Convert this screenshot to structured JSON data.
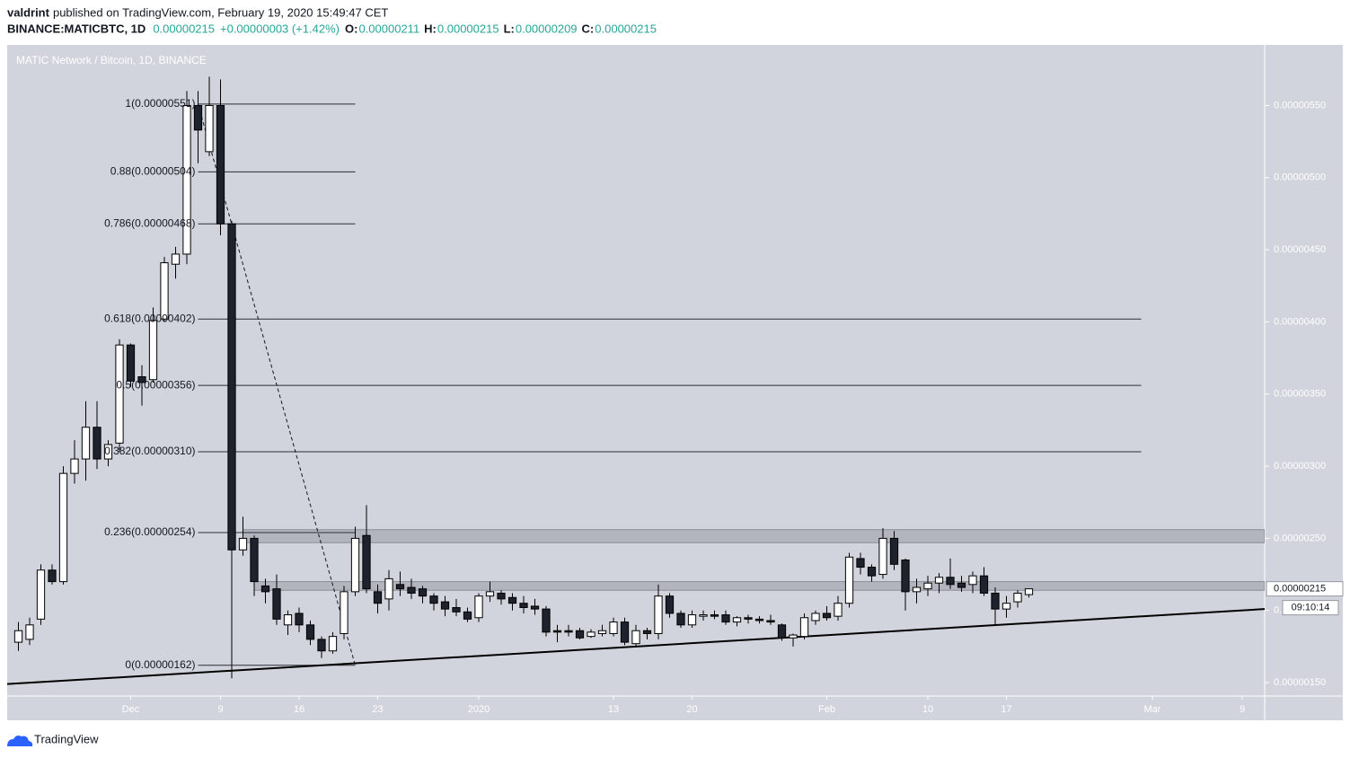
{
  "header": {
    "user": "valdrint",
    "published": "published on TradingView.com, February 19, 2020 15:49:47 CET",
    "symbol": "BINANCE:MATICBTC, 1D",
    "last": "0.00000215",
    "change": "+0.00000003 (+1.42%)",
    "o_label": "O:",
    "o": "0.00000211",
    "h_label": "H:",
    "h": "0.00000215",
    "l_label": "L:",
    "l": "0.00000209",
    "c_label": "C:",
    "c": "0.00000215"
  },
  "footer": {
    "brand": "TradingView"
  },
  "chart_data": {
    "type": "candlestick",
    "title": "MATIC Network / Bitcoin, 1D, BINANCE",
    "x": [
      "2019-11-21",
      "2019-11-22",
      "2019-11-23",
      "2019-11-24",
      "2019-11-25",
      "2019-11-26",
      "2019-11-27",
      "2019-11-28",
      "2019-11-29",
      "2019-11-30",
      "2019-12-01",
      "2019-12-02",
      "2019-12-03",
      "2019-12-04",
      "2019-12-05",
      "2019-12-06",
      "2019-12-07",
      "2019-12-08",
      "2019-12-09",
      "2019-12-10",
      "2019-12-11",
      "2019-12-12",
      "2019-12-13",
      "2019-12-14",
      "2019-12-15",
      "2019-12-16",
      "2019-12-17",
      "2019-12-18",
      "2019-12-19",
      "2019-12-20",
      "2019-12-21",
      "2019-12-22",
      "2019-12-23",
      "2019-12-24",
      "2019-12-25",
      "2019-12-26",
      "2019-12-27",
      "2019-12-28",
      "2019-12-29",
      "2019-12-30",
      "2019-12-31",
      "2020-01-01",
      "2020-01-02",
      "2020-01-03",
      "2020-01-04",
      "2020-01-05",
      "2020-01-06",
      "2020-01-07",
      "2020-01-08",
      "2020-01-09",
      "2020-01-10",
      "2020-01-11",
      "2020-01-12",
      "2020-01-13",
      "2020-01-14",
      "2020-01-15",
      "2020-01-16",
      "2020-01-17",
      "2020-01-18",
      "2020-01-19",
      "2020-01-20",
      "2020-01-21",
      "2020-01-22",
      "2020-01-23",
      "2020-01-24",
      "2020-01-25",
      "2020-01-26",
      "2020-01-27",
      "2020-01-28",
      "2020-01-29",
      "2020-01-30",
      "2020-01-31",
      "2020-02-01",
      "2020-02-02",
      "2020-02-03",
      "2020-02-04",
      "2020-02-05",
      "2020-02-06",
      "2020-02-07",
      "2020-02-08",
      "2020-02-09",
      "2020-02-10",
      "2020-02-11",
      "2020-02-12",
      "2020-02-13",
      "2020-02-14",
      "2020-02-15",
      "2020-02-16",
      "2020-02-17",
      "2020-02-18",
      "2020-02-19"
    ],
    "open": [
      1.78e-06,
      1.8e-06,
      1.94e-06,
      2.28e-06,
      2.2e-06,
      2.95e-06,
      3.05e-06,
      3.27e-06,
      3.05e-06,
      3.16e-06,
      3.84e-06,
      3.62e-06,
      3.6e-06,
      4.02e-06,
      4.4e-06,
      4.47e-06,
      5.5e-06,
      5.18e-06,
      5.5e-06,
      4.68e-06,
      2.42e-06,
      2.5e-06,
      2.17e-06,
      2.15e-06,
      1.9e-06,
      1.98e-06,
      1.9e-06,
      1.8e-06,
      1.72e-06,
      1.84e-06,
      2.13e-06,
      2.52e-06,
      2.13e-06,
      2.08e-06,
      2.18e-06,
      2.16e-06,
      2.15e-06,
      2.1e-06,
      2.06e-06,
      2.02e-06,
      1.99e-06,
      1.95e-06,
      2.1e-06,
      2.12e-06,
      2.09e-06,
      2.05e-06,
      2.03e-06,
      2.01e-06,
      1.86e-06,
      1.86e-06,
      1.86e-06,
      1.82e-06,
      1.84e-06,
      1.84e-06,
      1.92e-06,
      1.77e-06,
      1.86e-06,
      1.84e-06,
      2.1e-06,
      1.98e-06,
      1.9e-06,
      1.96e-06,
      1.97e-06,
      1.97e-06,
      1.92e-06,
      1.95e-06,
      1.94e-06,
      1.93e-06,
      1.9e-06,
      1.81e-06,
      1.82e-06,
      1.93e-06,
      1.98e-06,
      1.96e-06,
      2.05e-06,
      2.36e-06,
      2.3e-06,
      2.25e-06,
      2.5e-06,
      2.35e-06,
      2.13e-06,
      2.15e-06,
      2.19e-06,
      2.23e-06,
      2.19e-06,
      2.18e-06,
      2.24e-06,
      2.12e-06,
      2.01e-06,
      2.06e-06,
      2.11e-06
    ],
    "high": [
      1.92e-06,
      1.95e-06,
      2.32e-06,
      2.32e-06,
      3e-06,
      3.18e-06,
      3.45e-06,
      3.45e-06,
      3.18e-06,
      3.88e-06,
      3.85e-06,
      3.7e-06,
      4.1e-06,
      4.45e-06,
      4.52e-06,
      5.6e-06,
      5.6e-06,
      5.7e-06,
      5.68e-06,
      4.7e-06,
      2.65e-06,
      2.52e-06,
      2.22e-06,
      2.25e-06,
      2e-06,
      2.02e-06,
      1.93e-06,
      1.82e-06,
      1.85e-06,
      2.17e-06,
      2.58e-06,
      2.73e-06,
      2.18e-06,
      2.28e-06,
      2.27e-06,
      2.22e-06,
      2.17e-06,
      2.12e-06,
      2.1e-06,
      2.08e-06,
      2.02e-06,
      2.12e-06,
      2.2e-06,
      2.14e-06,
      2.12e-06,
      2.1e-06,
      2.08e-06,
      2.03e-06,
      1.9e-06,
      1.9e-06,
      1.88e-06,
      1.87e-06,
      1.9e-06,
      1.95e-06,
      1.95e-06,
      1.9e-06,
      1.88e-06,
      2.18e-06,
      2.12e-06,
      2e-06,
      2e-06,
      2e-06,
      2e-06,
      2e-06,
      1.96e-06,
      1.97e-06,
      1.96e-06,
      1.97e-06,
      1.91e-06,
      1.84e-06,
      1.98e-06,
      2e-06,
      2.03e-06,
      2.1e-06,
      2.4e-06,
      2.4e-06,
      2.32e-06,
      2.57e-06,
      2.55e-06,
      2.36e-06,
      2.22e-06,
      2.24e-06,
      2.26e-06,
      2.36e-06,
      2.24e-06,
      2.27e-06,
      2.3e-06,
      2.16e-06,
      2.1e-06,
      2.14e-06,
      2.15e-06
    ],
    "low": [
      1.72e-06,
      1.76e-06,
      1.9e-06,
      2.18e-06,
      2.18e-06,
      2.88e-06,
      2.9e-06,
      2.98e-06,
      3e-06,
      3.1e-06,
      3.55e-06,
      3.42e-06,
      3.58e-06,
      4e-06,
      4.3e-06,
      4.4e-06,
      5.1e-06,
      5.15e-06,
      4.6e-06,
      1.53e-06,
      2.38e-06,
      2.1e-06,
      2.05e-06,
      1.9e-06,
      1.83e-06,
      1.85e-06,
      1.76e-06,
      1.67e-06,
      1.7e-06,
      1.8e-06,
      2.1e-06,
      2.12e-06,
      1.98e-06,
      2e-06,
      2.1e-06,
      2.08e-06,
      2.05e-06,
      2e-06,
      1.96e-06,
      1.96e-06,
      1.92e-06,
      1.92e-06,
      2.06e-06,
      2.04e-06,
      2e-06,
      1.98e-06,
      1.97e-06,
      1.82e-06,
      1.78e-06,
      1.82e-06,
      1.8e-06,
      1.81e-06,
      1.82e-06,
      1.82e-06,
      1.76e-06,
      1.75e-06,
      1.8e-06,
      1.8e-06,
      1.95e-06,
      1.88e-06,
      1.88e-06,
      1.93e-06,
      1.94e-06,
      1.9e-06,
      1.89e-06,
      1.91e-06,
      1.91e-06,
      1.9e-06,
      1.79e-06,
      1.75e-06,
      1.8e-06,
      1.9e-06,
      1.93e-06,
      1.93e-06,
      2.02e-06,
      2.25e-06,
      2.2e-06,
      2.22e-06,
      2.28e-06,
      2e-06,
      2.05e-06,
      2.1e-06,
      2.12e-06,
      2.15e-06,
      2.13e-06,
      2.12e-06,
      2.1e-06,
      1.9e-06,
      1.95e-06,
      2.02e-06,
      2.09e-06
    ],
    "close": [
      1.86e-06,
      1.9e-06,
      2.28e-06,
      2.2e-06,
      2.95e-06,
      3.05e-06,
      3.27e-06,
      3.05e-06,
      3.15e-06,
      3.84e-06,
      3.59e-06,
      3.58e-06,
      4.01e-06,
      4.41e-06,
      4.47e-06,
      5.5e-06,
      5.33e-06,
      5.5e-06,
      4.68e-06,
      2.42e-06,
      2.5e-06,
      2.2e-06,
      2.13e-06,
      1.94e-06,
      1.97e-06,
      1.9e-06,
      1.8e-06,
      1.72e-06,
      1.82e-06,
      2.13e-06,
      2.5e-06,
      2.15e-06,
      2.05e-06,
      2.22e-06,
      2.15e-06,
      2.12e-06,
      2.1e-06,
      2.05e-06,
      2.01e-06,
      1.99e-06,
      1.94e-06,
      2.1e-06,
      2.13e-06,
      2.08e-06,
      2.05e-06,
      2.02e-06,
      2.01e-06,
      1.85e-06,
      1.85e-06,
      1.85e-06,
      1.81e-06,
      1.85e-06,
      1.86e-06,
      1.92e-06,
      1.78e-06,
      1.86e-06,
      1.84e-06,
      2.1e-06,
      1.98e-06,
      1.9e-06,
      1.97e-06,
      1.97e-06,
      1.96e-06,
      1.92e-06,
      1.95e-06,
      1.94e-06,
      1.93e-06,
      1.92e-06,
      1.81e-06,
      1.83e-06,
      1.95e-06,
      1.98e-06,
      1.95e-06,
      2.05e-06,
      2.37e-06,
      2.3e-06,
      2.24e-06,
      2.5e-06,
      2.32e-06,
      2.13e-06,
      2.16e-06,
      2.19e-06,
      2.23e-06,
      2.18e-06,
      2.16e-06,
      2.24e-06,
      2.12e-06,
      2.01e-06,
      2.05e-06,
      2.12e-06,
      2.15e-06
    ],
    "up_color": "#ffffff",
    "down_color": "#1e222d",
    "xlim": [
      "2019-11-20",
      "2020-03-11"
    ],
    "xticks": [
      {
        "value": "2019-12-01",
        "label": "Dec"
      },
      {
        "value": "2019-12-09",
        "label": "9"
      },
      {
        "value": "2019-12-16",
        "label": "16"
      },
      {
        "value": "2019-12-23",
        "label": "23"
      },
      {
        "value": "2020-01-01",
        "label": "2020"
      },
      {
        "value": "2020-01-13",
        "label": "13"
      },
      {
        "value": "2020-01-20",
        "label": "20"
      },
      {
        "value": "2020-02-01",
        "label": "Feb"
      },
      {
        "value": "2020-02-10",
        "label": "10"
      },
      {
        "value": "2020-02-17",
        "label": "17"
      },
      {
        "value": "2020-03-01",
        "label": "Mar"
      },
      {
        "value": "2020-03-09",
        "label": "9"
      }
    ],
    "ylim": [
      1.407e-06,
      5.92e-06
    ],
    "yticks": [
      {
        "value": 1.5e-06,
        "label": "0.00000150"
      },
      {
        "value": 2e-06,
        "label": "0.00000200"
      },
      {
        "value": 2.5e-06,
        "label": "0.00000250"
      },
      {
        "value": 3e-06,
        "label": "0.00000300"
      },
      {
        "value": 3.5e-06,
        "label": "0.00000350"
      },
      {
        "value": 4e-06,
        "label": "0.00000400"
      },
      {
        "value": 4.5e-06,
        "label": "0.00000450"
      },
      {
        "value": 5e-06,
        "label": "0.00000500"
      },
      {
        "value": 5.5e-06,
        "label": "0.00000550"
      }
    ],
    "last_price": {
      "value": 2.15e-06,
      "label": "0.00000215"
    },
    "countdown": "09:10:14",
    "fib": {
      "start": "2019-12-07",
      "levels": [
        {
          "value": 5.51e-06,
          "label": "1(0.00000551)",
          "end": "2019-12-21"
        },
        {
          "value": 5.04e-06,
          "label": "0.88(0.00000504)",
          "end": "2019-12-21"
        },
        {
          "value": 4.68e-06,
          "label": "0.786(0.00000468)",
          "end": "2019-12-21"
        },
        {
          "value": 4.02e-06,
          "label": "0.618(0.00000402)",
          "end": "2020-02-29"
        },
        {
          "value": 3.56e-06,
          "label": "0.5(0.00000356)",
          "end": "2020-02-29"
        },
        {
          "value": 3.1e-06,
          "label": "0.382(0.00000310)",
          "end": "2020-02-29"
        },
        {
          "value": 2.54e-06,
          "label": "0.236(0.00000254)",
          "end": "2019-12-21"
        },
        {
          "value": 1.62e-06,
          "label": "0(0.00000162)",
          "end": "2019-12-21"
        }
      ]
    },
    "trend_line": {
      "x": [
        "2019-12-07",
        "2019-12-21"
      ],
      "values": [
        5.51e-06,
        1.62e-06
      ]
    },
    "support_line": {
      "x": [
        "2019-11-20",
        "2020-03-11"
      ],
      "values": [
        1.49e-06,
        2.01e-06
      ]
    },
    "zones": [
      {
        "x_start": "2019-12-11",
        "low": 2.47e-06,
        "high": 2.56e-06
      },
      {
        "x_start": "2019-12-12",
        "low": 2.14e-06,
        "high": 2.2e-06
      }
    ]
  }
}
